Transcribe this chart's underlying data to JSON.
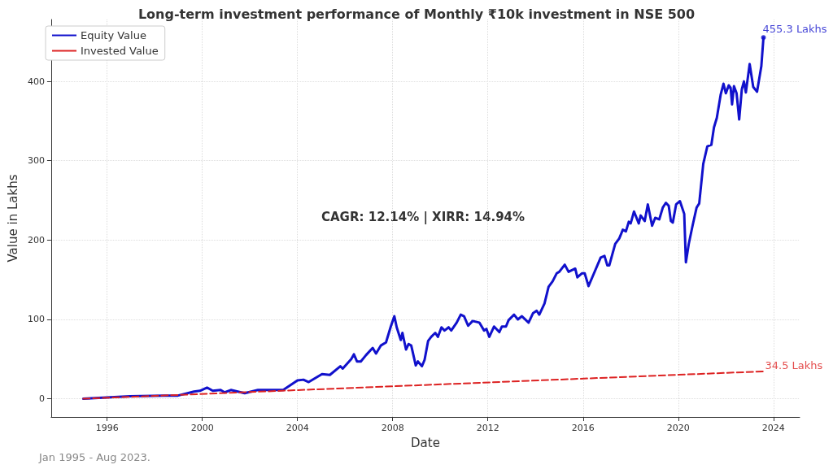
{
  "chart_data": {
    "type": "line",
    "title": "Long-term investment performance of Monthly ₹10k investment in NSE 500",
    "xlabel": "Date",
    "ylabel": "Value in Lakhs",
    "xlim": [
      1993.65,
      2025.1
    ],
    "xticks": [
      1996,
      2000,
      2004,
      2008,
      2012,
      2016,
      2020,
      2024
    ],
    "ylim": [
      -23,
      478
    ],
    "yticks": [
      0,
      100,
      200,
      300,
      400
    ],
    "grid": true,
    "legend": "top left",
    "series": [
      {
        "name": "Equity Value",
        "color": "#1111cc",
        "line_style": "solid",
        "x": [
          1995.0,
          1996.96,
          1998.4,
          1998.98,
          1999.65,
          1999.9,
          2000.2,
          2000.44,
          2000.77,
          2000.94,
          2001.2,
          2001.78,
          2002.34,
          2003.0,
          2003.4,
          2004.0,
          2004.25,
          2004.47,
          2005.03,
          2005.36,
          2005.8,
          2005.9,
          2006.26,
          2006.37,
          2006.5,
          2006.66,
          2006.88,
          2007.16,
          2007.3,
          2007.5,
          2007.72,
          2007.92,
          2008.07,
          2008.17,
          2008.34,
          2008.41,
          2008.56,
          2008.67,
          2008.78,
          2008.97,
          2009.06,
          2009.23,
          2009.34,
          2009.49,
          2009.62,
          2009.79,
          2009.9,
          2010.05,
          2010.18,
          2010.35,
          2010.46,
          2010.69,
          2010.86,
          2011.0,
          2011.17,
          2011.36,
          2011.64,
          2011.84,
          2011.94,
          2012.06,
          2012.26,
          2012.48,
          2012.59,
          2012.76,
          2012.87,
          2013.1,
          2013.26,
          2013.43,
          2013.71,
          2013.9,
          2014.05,
          2014.16,
          2014.38,
          2014.55,
          2014.72,
          2014.89,
          2015.0,
          2015.23,
          2015.39,
          2015.67,
          2015.76,
          2015.95,
          2016.07,
          2016.23,
          2016.4,
          2016.74,
          2016.9,
          2017.02,
          2017.1,
          2017.35,
          2017.52,
          2017.67,
          2017.8,
          2017.92,
          2018.0,
          2018.14,
          2018.34,
          2018.42,
          2018.59,
          2018.72,
          2018.9,
          2019.03,
          2019.2,
          2019.35,
          2019.48,
          2019.6,
          2019.69,
          2019.77,
          2019.91,
          2020.07,
          2020.25,
          2020.32,
          2020.44,
          2020.6,
          2020.77,
          2020.88,
          2021.05,
          2021.22,
          2021.39,
          2021.5,
          2021.62,
          2021.78,
          2021.9,
          2022.0,
          2022.12,
          2022.2,
          2022.26,
          2022.34,
          2022.45,
          2022.56,
          2022.67,
          2022.76,
          2022.84,
          2023.0,
          2023.15,
          2023.31,
          2023.49,
          2023.58
        ],
        "values": [
          0,
          3,
          4,
          4,
          9,
          10,
          14,
          10,
          11,
          8,
          11,
          7,
          11,
          11,
          11,
          23,
          24,
          21,
          31,
          30,
          41,
          38,
          50,
          56,
          47,
          47,
          55,
          64,
          57,
          67,
          71,
          91,
          104,
          90,
          74,
          83,
          62,
          69,
          67,
          42,
          47,
          41,
          49,
          73,
          78,
          83,
          78,
          90,
          86,
          90,
          86,
          96,
          106,
          104,
          92,
          98,
          96,
          86,
          88,
          78,
          91,
          84,
          91,
          91,
          99,
          106,
          100,
          104,
          96,
          108,
          111,
          106,
          120,
          141,
          148,
          158,
          160,
          169,
          160,
          164,
          153,
          158,
          158,
          142,
          154,
          178,
          180,
          168,
          168,
          195,
          202,
          213,
          211,
          223,
          221,
          236,
          221,
          231,
          224,
          245,
          218,
          228,
          226,
          241,
          247,
          243,
          224,
          222,
          245,
          249,
          233,
          172,
          195,
          218,
          241,
          246,
          296,
          318,
          320,
          342,
          354,
          383,
          397,
          385,
          395,
          392,
          371,
          394,
          385,
          352,
          390,
          400,
          386,
          422,
          393,
          387,
          419,
          455.3
        ]
      },
      {
        "name": "Invested Value",
        "color": "#dd2222",
        "line_style": "dashed",
        "x": [
          1995.0,
          2023.58
        ],
        "values": [
          0,
          34.5
        ]
      }
    ],
    "annotations": [
      {
        "text": "455.3 Lakhs",
        "x": 2023.58,
        "y": 455.3
      },
      {
        "text": "34.5 Lakhs",
        "x": 2023.58,
        "y": 34.5
      },
      "CAGR: 12.14% | XIRR: 14.94%",
      "Jan 1995 - Aug 2023."
    ]
  }
}
